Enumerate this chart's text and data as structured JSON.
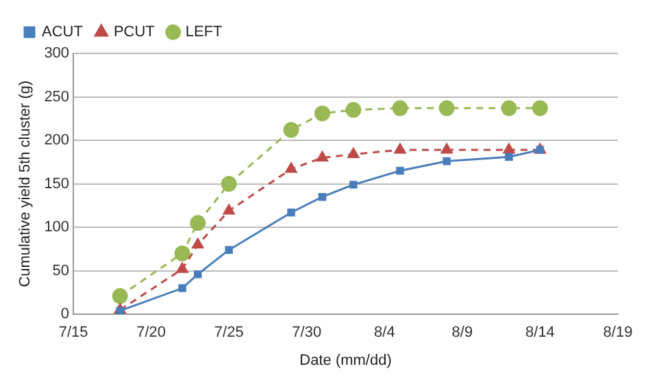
{
  "chart_data": {
    "type": "line",
    "xlabel": "Date (mm/dd)",
    "ylabel": "Cumulative yield 5th cluster (g)",
    "x": [
      "--07-18",
      "--07-22",
      "--07-23",
      "--07-25",
      "--07-29",
      "--07-31",
      "--08-02",
      "--08-05",
      "--08-08",
      "--08-12",
      "--08-14"
    ],
    "series": [
      {
        "name": "ACUT",
        "color": "#4a7ebb",
        "marker": "square",
        "line_style": "solid",
        "values": [
          4,
          30,
          46,
          74,
          117,
          135,
          149,
          165,
          176,
          181,
          189
        ]
      },
      {
        "name": "PCUT",
        "color": "#be4b48",
        "marker": "triangle",
        "line_style": "dashed",
        "values": [
          5,
          52,
          80,
          119,
          167,
          180,
          184,
          189,
          189,
          189,
          189
        ]
      },
      {
        "name": "LEFT",
        "color": "#98b954",
        "marker": "circle",
        "line_style": "dashed",
        "values": [
          21,
          70,
          105,
          150,
          212,
          231,
          235,
          237,
          237,
          237,
          237
        ]
      }
    ],
    "xlim": [
      "--07-15",
      "--08-19"
    ],
    "xticks": [
      {
        "value": "--07-15",
        "label": "7/15"
      },
      {
        "value": "--07-20",
        "label": "7/20"
      },
      {
        "value": "--07-25",
        "label": "7/25"
      },
      {
        "value": "--07-30",
        "label": "7/30"
      },
      {
        "value": "--08-04",
        "label": "8/4"
      },
      {
        "value": "--08-09",
        "label": "8/9"
      },
      {
        "value": "--08-14",
        "label": "8/14"
      },
      {
        "value": "--08-19",
        "label": "8/19"
      }
    ],
    "ylim": [
      0,
      300
    ],
    "yticks": [
      0,
      50,
      100,
      150,
      200,
      250,
      300
    ],
    "grid": "y",
    "legend": "top left"
  }
}
